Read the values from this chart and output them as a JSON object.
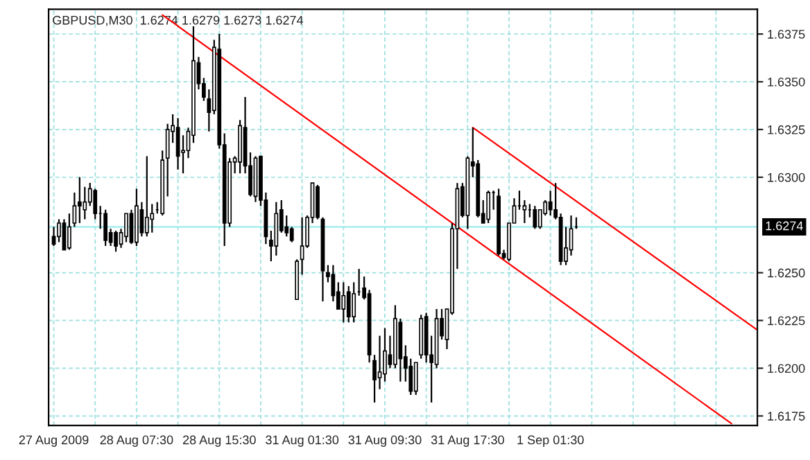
{
  "chart_data": {
    "type": "candlestick",
    "title": "GBPUSD,M30  1.6274 1.6279 1.6273 1.6274",
    "categories": [
      "27 Aug 2009",
      null,
      null,
      null,
      null,
      null,
      null,
      null,
      null,
      null,
      null,
      null,
      null,
      null,
      null,
      null,
      "28 Aug 07:30",
      null,
      null,
      null,
      null,
      null,
      null,
      null,
      null,
      null,
      null,
      null,
      null,
      null,
      null,
      null,
      "28 Aug 15:30",
      null,
      null,
      null,
      null,
      null,
      null,
      null,
      null,
      null,
      null,
      null,
      null,
      null,
      null,
      null,
      "31 Aug 01:30",
      null,
      null,
      null,
      null,
      null,
      null,
      null,
      null,
      null,
      null,
      null,
      null,
      null,
      null,
      null,
      "31 Aug 09:30",
      null,
      null,
      null,
      null,
      null,
      null,
      null,
      null,
      null,
      null,
      null,
      null,
      null,
      null,
      null,
      "31 Aug 17:30",
      null,
      null,
      null,
      null,
      null,
      null,
      null,
      null,
      null,
      null,
      null,
      null,
      null,
      null,
      null,
      "1 Sep 01:30",
      null,
      null,
      null,
      null,
      null,
      null,
      null,
      null,
      null,
      null,
      null,
      null,
      null,
      null,
      null,
      null,
      null,
      null,
      null,
      null,
      null,
      null,
      null,
      null,
      null,
      null,
      null,
      null,
      null,
      null,
      null,
      null,
      null,
      null,
      null,
      null,
      null,
      null,
      null,
      null
    ],
    "ohlc": [
      [
        1.6269,
        1.6274,
        1.6264,
        1.6265
      ],
      [
        1.6269,
        1.6278,
        1.6266,
        1.6276
      ],
      [
        1.6276,
        1.6278,
        1.6262,
        1.6262
      ],
      [
        1.6263,
        1.6281,
        1.6262,
        1.6274
      ],
      [
        1.6276,
        1.6292,
        1.6274,
        1.6285
      ],
      [
        1.6287,
        1.63,
        1.6276,
        1.6285
      ],
      [
        1.6283,
        1.6295,
        1.6278,
        1.6287
      ],
      [
        1.6287,
        1.6297,
        1.6285,
        1.6294
      ],
      [
        1.6293,
        1.6294,
        1.6278,
        1.6281
      ],
      [
        1.6281,
        1.6285,
        1.6273,
        1.6281
      ],
      [
        1.6281,
        1.6283,
        1.6264,
        1.6267
      ],
      [
        1.6271,
        1.6273,
        1.6264,
        1.6266
      ],
      [
        1.6271,
        1.6272,
        1.6261,
        1.6264
      ],
      [
        1.6265,
        1.6273,
        1.6263,
        1.6271
      ],
      [
        1.6269,
        1.6281,
        1.6266,
        1.6281
      ],
      [
        1.6281,
        1.6283,
        1.6265,
        1.6266
      ],
      [
        1.6266,
        1.6294,
        1.6264,
        1.6285
      ],
      [
        1.6283,
        1.6287,
        1.6269,
        1.6271
      ],
      [
        1.6271,
        1.6311,
        1.6269,
        1.6279
      ],
      [
        1.6278,
        1.6286,
        1.6271,
        1.6281
      ],
      [
        1.6283,
        1.6287,
        1.6281,
        1.6283
      ],
      [
        1.6281,
        1.6314,
        1.628,
        1.6309
      ],
      [
        1.631,
        1.6328,
        1.629,
        1.6325
      ],
      [
        1.6324,
        1.6333,
        1.6318,
        1.6327
      ],
      [
        1.6326,
        1.6331,
        1.6304,
        1.6311
      ],
      [
        1.6313,
        1.6322,
        1.6302,
        1.6314
      ],
      [
        1.6314,
        1.6326,
        1.631,
        1.6324
      ],
      [
        1.6322,
        1.6379,
        1.6318,
        1.6361
      ],
      [
        1.636,
        1.6363,
        1.6346,
        1.6349
      ],
      [
        1.6349,
        1.6352,
        1.634,
        1.6342
      ],
      [
        1.6341,
        1.6346,
        1.6324,
        1.6334
      ],
      [
        1.6335,
        1.6372,
        1.6333,
        1.6368
      ],
      [
        1.6367,
        1.6375,
        1.6315,
        1.6317
      ],
      [
        1.6317,
        1.6323,
        1.6264,
        1.6276
      ],
      [
        1.6276,
        1.631,
        1.6274,
        1.6308
      ],
      [
        1.6308,
        1.6311,
        1.6302,
        1.631
      ],
      [
        1.6308,
        1.633,
        1.6302,
        1.6327
      ],
      [
        1.6326,
        1.6342,
        1.6302,
        1.6306
      ],
      [
        1.6306,
        1.6313,
        1.629,
        1.6291
      ],
      [
        1.629,
        1.6311,
        1.6287,
        1.631
      ],
      [
        1.6311,
        1.6311,
        1.6285,
        1.6288
      ],
      [
        1.6288,
        1.6292,
        1.6265,
        1.6269
      ],
      [
        1.6267,
        1.6272,
        1.6256,
        1.6264
      ],
      [
        1.6264,
        1.6287,
        1.6259,
        1.6281
      ],
      [
        1.6283,
        1.6288,
        1.6271,
        1.6272
      ],
      [
        1.6274,
        1.628,
        1.6269,
        1.6271
      ],
      [
        1.6273,
        1.6274,
        1.6266,
        1.6267
      ],
      [
        1.6236,
        1.6257,
        1.6236,
        1.6256
      ],
      [
        1.6257,
        1.6279,
        1.6249,
        1.6264
      ],
      [
        1.6264,
        1.628,
        1.6263,
        1.6279
      ],
      [
        1.6279,
        1.6297,
        1.6276,
        1.6297
      ],
      [
        1.6295,
        1.6296,
        1.6278,
        1.6279
      ],
      [
        1.6278,
        1.6279,
        1.6235,
        1.6251
      ],
      [
        1.625,
        1.6254,
        1.6245,
        1.6248
      ],
      [
        1.6249,
        1.6254,
        1.6235,
        1.6238
      ],
      [
        1.624,
        1.6245,
        1.6231,
        1.6231
      ],
      [
        1.6231,
        1.6245,
        1.6224,
        1.6238
      ],
      [
        1.624,
        1.6243,
        1.6224,
        1.6227
      ],
      [
        1.6227,
        1.6245,
        1.6224,
        1.6239
      ],
      [
        1.624,
        1.6252,
        1.6238,
        1.624
      ],
      [
        1.6242,
        1.6248,
        1.6236,
        1.6237
      ],
      [
        1.6239,
        1.6241,
        1.6203,
        1.6207
      ],
      [
        1.6204,
        1.6207,
        1.6182,
        1.6194
      ],
      [
        1.6195,
        1.6217,
        1.6189,
        1.6198
      ],
      [
        1.6197,
        1.6221,
        1.6193,
        1.6209
      ],
      [
        1.6207,
        1.6217,
        1.62,
        1.6202
      ],
      [
        1.6202,
        1.6233,
        1.62,
        1.6226
      ],
      [
        1.6224,
        1.6226,
        1.6193,
        1.6205
      ],
      [
        1.6206,
        1.6212,
        1.6193,
        1.62
      ],
      [
        1.6201,
        1.6205,
        1.6186,
        1.6188
      ],
      [
        1.6188,
        1.6203,
        1.6186,
        1.6203
      ],
      [
        1.6207,
        1.6228,
        1.6205,
        1.6226
      ],
      [
        1.6227,
        1.6229,
        1.6203,
        1.6207
      ],
      [
        1.6207,
        1.6217,
        1.6182,
        1.6203
      ],
      [
        1.6202,
        1.6231,
        1.62,
        1.6226
      ],
      [
        1.6226,
        1.6231,
        1.6215,
        1.6217
      ],
      [
        1.6215,
        1.6231,
        1.621,
        1.6231
      ],
      [
        1.6229,
        1.6276,
        1.6228,
        1.6273
      ],
      [
        1.6273,
        1.6297,
        1.6252,
        1.6294
      ],
      [
        1.6295,
        1.6297,
        1.6279,
        1.628
      ],
      [
        1.628,
        1.6311,
        1.6273,
        1.631
      ],
      [
        1.6308,
        1.6326,
        1.63,
        1.6306
      ],
      [
        1.6307,
        1.6309,
        1.6279,
        1.628
      ],
      [
        1.6281,
        1.6288,
        1.6276,
        1.6276
      ],
      [
        1.6278,
        1.6293,
        1.6276,
        1.6292
      ],
      [
        1.6292,
        1.6293,
        1.6283,
        1.6292
      ],
      [
        1.629,
        1.6294,
        1.6259,
        1.626
      ],
      [
        1.626,
        1.6262,
        1.6257,
        1.6258
      ],
      [
        1.6257,
        1.6276,
        1.6256,
        1.6276
      ],
      [
        1.6276,
        1.6289,
        1.6276,
        1.6285
      ],
      [
        1.6285,
        1.6293,
        1.6283,
        1.6285
      ],
      [
        1.6283,
        1.6288,
        1.6276,
        1.6285
      ],
      [
        1.6283,
        1.6286,
        1.6279,
        1.6283
      ],
      [
        1.6283,
        1.6285,
        1.6273,
        1.6274
      ],
      [
        1.6274,
        1.6283,
        1.6273,
        1.6283
      ],
      [
        1.6281,
        1.6288,
        1.628,
        1.6287
      ],
      [
        1.6287,
        1.6293,
        1.628,
        1.6283
      ],
      [
        1.6283,
        1.6297,
        1.6278,
        1.6279
      ],
      [
        1.6279,
        1.6281,
        1.6254,
        1.6256
      ],
      [
        1.6256,
        1.6274,
        1.6254,
        1.6263
      ],
      [
        1.6262,
        1.628,
        1.6259,
        1.6273
      ],
      [
        1.6274,
        1.6279,
        1.6273,
        1.6274
      ],
      null,
      null,
      null,
      null,
      null,
      null,
      null,
      null,
      null,
      null,
      null,
      null,
      null,
      null,
      null,
      null,
      null,
      null,
      null,
      null,
      null,
      null,
      null,
      null,
      null,
      null,
      null,
      null,
      null,
      null,
      null,
      null,
      null,
      null,
      null
    ],
    "series": [
      {
        "type": "line",
        "color": "#ff0000",
        "values": [
          null,
          null,
          null,
          null,
          null,
          null,
          null,
          null,
          null,
          null,
          null,
          null,
          null,
          null,
          null,
          null,
          null,
          null,
          null,
          null,
          null,
          1.6385,
          null,
          null,
          null,
          null,
          null,
          null,
          null,
          null,
          null,
          null,
          null,
          null,
          null,
          null,
          null,
          null,
          null,
          null,
          null,
          null,
          null,
          null,
          null,
          null,
          null,
          null,
          null,
          null,
          null,
          null,
          null,
          null,
          null,
          null,
          null,
          null,
          null,
          null,
          null,
          null,
          null,
          null,
          null,
          null,
          null,
          null,
          null,
          null,
          null,
          null,
          null,
          null,
          null,
          null,
          null,
          null,
          null,
          null,
          null,
          null,
          null,
          null,
          null,
          null,
          null,
          null,
          null,
          null,
          null,
          null,
          null,
          null,
          null,
          null,
          null,
          null,
          null,
          null,
          null,
          null,
          null,
          null,
          null,
          null,
          null,
          null,
          null,
          null,
          null,
          null,
          null,
          null,
          null,
          null,
          null,
          null,
          null,
          null,
          null,
          null,
          null,
          null,
          null,
          null,
          null,
          null,
          null,
          null,
          null,
          1.6171,
          null,
          null,
          null,
          null,
          null
        ]
      },
      {
        "type": "line",
        "color": "#ff0000",
        "values": [
          null,
          null,
          null,
          null,
          null,
          null,
          null,
          null,
          null,
          null,
          null,
          null,
          null,
          null,
          null,
          null,
          null,
          null,
          null,
          null,
          null,
          null,
          null,
          null,
          null,
          null,
          null,
          null,
          null,
          null,
          null,
          null,
          null,
          null,
          null,
          null,
          null,
          null,
          null,
          null,
          null,
          null,
          null,
          null,
          null,
          null,
          null,
          null,
          null,
          null,
          null,
          null,
          null,
          null,
          null,
          null,
          null,
          null,
          null,
          null,
          null,
          null,
          null,
          null,
          null,
          null,
          null,
          null,
          null,
          null,
          null,
          null,
          null,
          null,
          null,
          null,
          null,
          null,
          null,
          null,
          null,
          1.6326,
          null,
          null,
          null,
          null,
          null,
          null,
          null,
          null,
          null,
          null,
          null,
          null,
          null,
          null,
          null,
          null,
          null,
          null,
          null,
          null,
          null,
          null,
          null,
          null,
          null,
          null,
          null,
          null,
          null,
          null,
          null,
          null,
          null,
          null,
          null,
          null,
          null,
          null,
          null,
          null,
          null,
          null,
          null,
          null,
          null,
          null,
          null,
          null,
          null,
          null,
          null,
          null,
          null,
          null,
          1.622
        ]
      }
    ],
    "ylim": [
      1.617,
      1.6388
    ],
    "yticks": [
      1.6175,
      {
        "value": 1.62,
        "label": "1.6200"
      },
      1.6225,
      {
        "value": 1.625,
        "label": "1.6250"
      },
      {
        "value": 1.63,
        "label": "1.6300"
      },
      1.6325,
      {
        "value": 1.635,
        "label": "1.6350"
      },
      1.6375
    ],
    "ref_lines": [
      {
        "axis": "y",
        "value": 1.6274,
        "label": "1.6274",
        "color": "#a6ecec"
      }
    ],
    "grid": true
  }
}
